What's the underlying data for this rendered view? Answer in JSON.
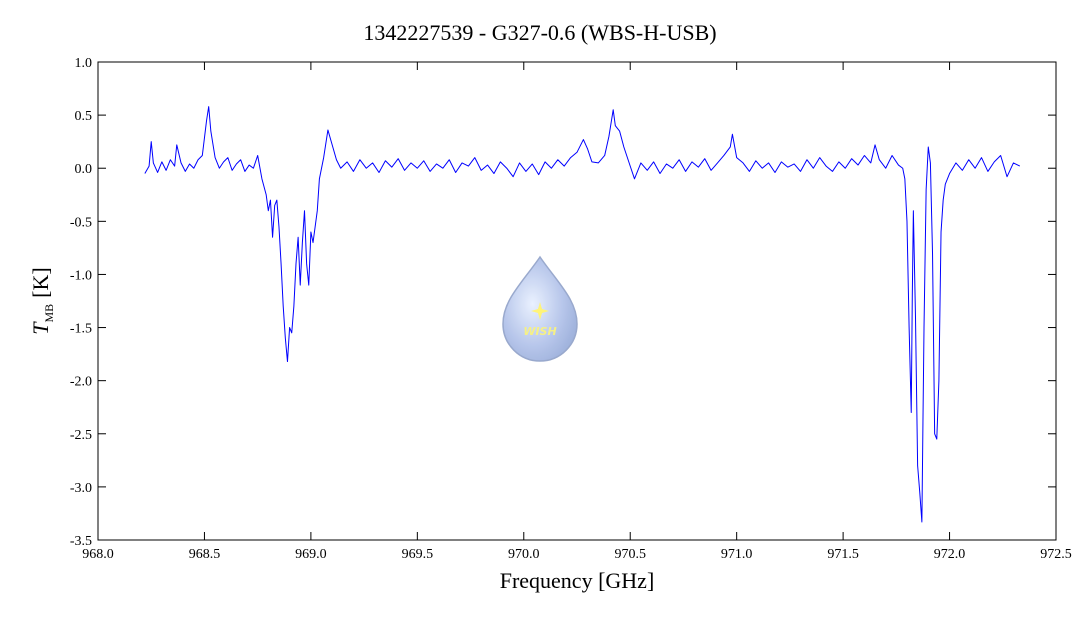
{
  "chart_data": {
    "type": "line",
    "title": "1342227539 - G327-0.6 (WBS-H-USB)",
    "xlabel": "Frequency [GHz]",
    "ylabel": {
      "symbol": "T",
      "subscript": "MB",
      "unit": "[K]"
    },
    "logo_text": "WISH",
    "xlim": [
      968.0,
      972.5
    ],
    "ylim": [
      -3.5,
      1.0
    ],
    "xticks": [
      {
        "value": 968,
        "label": "968.0"
      },
      968.5,
      {
        "value": 969,
        "label": "969.0"
      },
      969.5,
      {
        "value": 970,
        "label": "970.0"
      },
      970.5,
      {
        "value": 971,
        "label": "971.0"
      },
      971.5,
      {
        "value": 972,
        "label": "972.0"
      },
      972.5
    ],
    "yticks": [
      {
        "value": 1,
        "label": "1.0"
      },
      0.5,
      {
        "value": 0,
        "label": "0.0"
      },
      -0.5,
      {
        "value": -1,
        "label": "-1.0"
      },
      -1.5,
      {
        "value": -2,
        "label": "-2.0"
      },
      -2.5,
      {
        "value": -3,
        "label": "-3.0"
      },
      -3.5
    ],
    "series": [
      {
        "color": "#0000ff",
        "x": [
          968.22,
          968.24,
          968.25,
          968.26,
          968.28,
          968.3,
          968.32,
          968.34,
          968.36,
          968.37,
          968.39,
          968.41,
          968.43,
          968.45,
          968.47,
          968.49,
          968.51,
          968.52,
          968.53,
          968.55,
          968.57,
          968.59,
          968.61,
          968.63,
          968.65,
          968.67,
          968.69,
          968.71,
          968.73,
          968.75,
          968.77,
          968.79,
          968.8,
          968.81,
          968.82,
          968.83,
          968.84,
          968.85,
          968.86,
          968.87,
          968.88,
          968.89,
          968.9,
          968.91,
          968.92,
          968.93,
          968.94,
          968.95,
          968.96,
          968.97,
          968.98,
          968.99,
          969.0,
          969.01,
          969.02,
          969.03,
          969.04,
          969.06,
          969.08,
          969.1,
          969.12,
          969.14,
          969.17,
          969.2,
          969.23,
          969.26,
          969.29,
          969.32,
          969.35,
          969.38,
          969.41,
          969.44,
          969.47,
          969.5,
          969.53,
          969.56,
          969.59,
          969.62,
          969.65,
          969.68,
          969.71,
          969.74,
          969.77,
          969.8,
          969.83,
          969.86,
          969.89,
          969.92,
          969.95,
          969.98,
          970.01,
          970.04,
          970.07,
          970.1,
          970.13,
          970.16,
          970.19,
          970.22,
          970.25,
          970.28,
          970.3,
          970.32,
          970.35,
          970.38,
          970.4,
          970.42,
          970.43,
          970.45,
          970.47,
          970.5,
          970.52,
          970.55,
          970.58,
          970.61,
          970.64,
          970.67,
          970.7,
          970.73,
          970.76,
          970.79,
          970.82,
          970.85,
          970.88,
          970.91,
          970.94,
          970.97,
          970.98,
          971.0,
          971.03,
          971.06,
          971.09,
          971.12,
          971.15,
          971.18,
          971.21,
          971.24,
          971.27,
          971.3,
          971.33,
          971.36,
          971.39,
          971.42,
          971.45,
          971.48,
          971.51,
          971.54,
          971.57,
          971.6,
          971.63,
          971.65,
          971.67,
          971.7,
          971.73,
          971.76,
          971.78,
          971.79,
          971.8,
          971.81,
          971.82,
          971.825,
          971.83,
          971.84,
          971.85,
          971.86,
          971.87,
          971.875,
          971.88,
          971.89,
          971.9,
          971.91,
          971.92,
          971.93,
          971.94,
          971.95,
          971.96,
          971.97,
          971.98,
          972.0,
          972.03,
          972.06,
          972.09,
          972.12,
          972.15,
          972.18,
          972.21,
          972.24,
          972.27,
          972.3,
          972.33
        ],
        "values": [
          -0.05,
          0.02,
          0.25,
          0.05,
          -0.04,
          0.06,
          -0.02,
          0.08,
          0.02,
          0.22,
          0.05,
          -0.03,
          0.04,
          0.0,
          0.08,
          0.12,
          0.45,
          0.58,
          0.35,
          0.1,
          0.0,
          0.06,
          0.1,
          -0.02,
          0.04,
          0.08,
          -0.03,
          0.03,
          0.0,
          0.12,
          -0.1,
          -0.25,
          -0.4,
          -0.3,
          -0.65,
          -0.35,
          -0.3,
          -0.55,
          -0.9,
          -1.3,
          -1.6,
          -1.82,
          -1.5,
          -1.55,
          -1.3,
          -0.9,
          -0.65,
          -1.1,
          -0.7,
          -0.4,
          -0.9,
          -1.1,
          -0.6,
          -0.7,
          -0.55,
          -0.4,
          -0.1,
          0.1,
          0.36,
          0.22,
          0.08,
          0.0,
          0.06,
          -0.03,
          0.08,
          0.0,
          0.05,
          -0.04,
          0.07,
          0.01,
          0.09,
          -0.02,
          0.05,
          0.0,
          0.07,
          -0.03,
          0.04,
          0.0,
          0.08,
          -0.04,
          0.05,
          0.02,
          0.1,
          -0.02,
          0.03,
          -0.05,
          0.06,
          0.0,
          -0.08,
          0.05,
          -0.03,
          0.04,
          -0.06,
          0.06,
          0.0,
          0.08,
          0.02,
          0.1,
          0.15,
          0.27,
          0.18,
          0.06,
          0.05,
          0.12,
          0.3,
          0.55,
          0.4,
          0.35,
          0.2,
          0.02,
          -0.1,
          0.05,
          -0.02,
          0.06,
          -0.05,
          0.04,
          0.0,
          0.08,
          -0.03,
          0.06,
          0.01,
          0.09,
          -0.02,
          0.05,
          0.12,
          0.2,
          0.32,
          0.1,
          0.05,
          -0.03,
          0.07,
          0.0,
          0.05,
          -0.04,
          0.06,
          0.01,
          0.04,
          -0.03,
          0.08,
          0.0,
          0.1,
          0.02,
          -0.03,
          0.06,
          0.0,
          0.09,
          0.03,
          0.12,
          0.05,
          0.22,
          0.08,
          0.0,
          0.12,
          0.03,
          0.0,
          -0.1,
          -0.5,
          -1.5,
          -2.3,
          -1.2,
          -0.4,
          -1.4,
          -2.8,
          -3.05,
          -3.33,
          -2.4,
          -1.5,
          -0.2,
          0.2,
          0.05,
          -0.8,
          -2.5,
          -2.55,
          -2.0,
          -0.6,
          -0.3,
          -0.15,
          -0.05,
          0.05,
          -0.02,
          0.08,
          0.0,
          0.1,
          -0.03,
          0.06,
          0.12,
          -0.08,
          0.05,
          0.02
        ]
      }
    ]
  }
}
